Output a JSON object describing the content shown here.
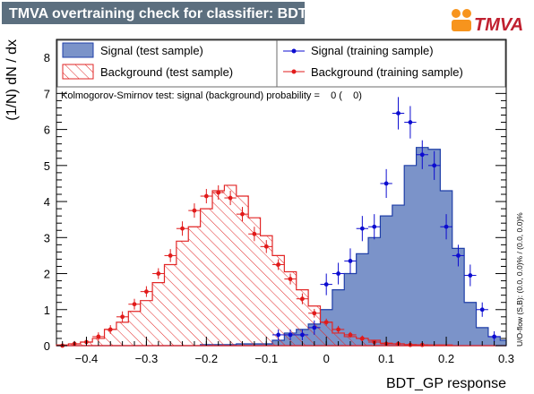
{
  "header": {
    "title": "TMVA overtraining check for classifier: BDT_GP",
    "logo_text": "TMVA"
  },
  "colors": {
    "title_bg": "#5c6f7f",
    "signal_fill": "#7b93c9",
    "signal_line": "#1f3fa8",
    "signal_points": "#0c0cd0",
    "background_hatch": "#e22626",
    "background_points": "#e11b1b",
    "legend_border": "#6b6b6b"
  },
  "chart_data": {
    "type": "bar",
    "title": "TMVA overtraining check for classifier: BDT_GP",
    "xlabel": "BDT_GP response",
    "ylabel": "(1/N) dN / dx",
    "xlim": [
      -0.45,
      0.3
    ],
    "ylim": [
      0,
      8.5
    ],
    "xticks": [
      -0.4,
      -0.3,
      -0.2,
      -0.1,
      0,
      0.1,
      0.2,
      0.3
    ],
    "xtick_labels": [
      "−0.4",
      "−0.3",
      "−0.2",
      "−0.1",
      "0",
      "0.1",
      "0.2",
      "0.3"
    ],
    "yticks": [
      0,
      1,
      2,
      3,
      4,
      5,
      6,
      7,
      8
    ],
    "ytick_labels": [
      "0",
      "1",
      "2",
      "3",
      "4",
      "5",
      "6",
      "7",
      "8"
    ],
    "bin_edges": [
      -0.45,
      -0.43,
      -0.41,
      -0.39,
      -0.37,
      -0.35,
      -0.33,
      -0.31,
      -0.29,
      -0.27,
      -0.25,
      -0.23,
      -0.21,
      -0.19,
      -0.17,
      -0.15,
      -0.13,
      -0.11,
      -0.09,
      -0.07,
      -0.05,
      -0.03,
      -0.01,
      0.01,
      0.03,
      0.05,
      0.07,
      0.09,
      0.11,
      0.13,
      0.15,
      0.17,
      0.19,
      0.21,
      0.23,
      0.25,
      0.27,
      0.29,
      0.3
    ],
    "series": [
      {
        "name": "Signal (test sample)",
        "style": "filled",
        "values": [
          0,
          0,
          0,
          0,
          0,
          0,
          0,
          0,
          0,
          0,
          0,
          0,
          0.03,
          0.03,
          0.03,
          0.05,
          0.05,
          0.05,
          0.15,
          0.35,
          0.45,
          0.6,
          1.0,
          1.55,
          2.0,
          2.55,
          3.0,
          3.6,
          3.9,
          5.0,
          5.5,
          5.45,
          4.3,
          2.7,
          1.2,
          0.5,
          0.25,
          0.15
        ]
      },
      {
        "name": "Background (test sample)",
        "style": "hatched",
        "values": [
          0.02,
          0.05,
          0.1,
          0.2,
          0.45,
          0.65,
          0.95,
          1.25,
          1.75,
          2.25,
          2.9,
          3.3,
          3.8,
          4.3,
          4.45,
          4.15,
          3.55,
          3.05,
          2.5,
          2.05,
          1.55,
          1.1,
          0.65,
          0.35,
          0.25,
          0.2,
          0.15,
          0.07,
          0.05,
          0.03,
          0.02,
          0.02,
          0.02,
          0,
          0,
          0,
          0,
          0
        ]
      },
      {
        "name": "Signal (training sample)",
        "style": "points",
        "x": [
          -0.08,
          -0.06,
          -0.04,
          -0.02,
          0.0,
          0.02,
          0.04,
          0.06,
          0.08,
          0.1,
          0.12,
          0.14,
          0.16,
          0.18,
          0.2,
          0.22,
          0.24,
          0.26,
          0.28
        ],
        "y": [
          0.3,
          0.3,
          0.3,
          0.5,
          1.7,
          2.0,
          2.35,
          3.25,
          3.3,
          4.5,
          6.45,
          6.2,
          5.3,
          5.0,
          3.3,
          2.5,
          1.95,
          1.0,
          0.25
        ],
        "err": [
          0.15,
          0.15,
          0.15,
          0.2,
          0.3,
          0.3,
          0.35,
          0.35,
          0.35,
          0.4,
          0.45,
          0.45,
          0.4,
          0.4,
          0.35,
          0.3,
          0.3,
          0.2,
          0.15
        ]
      },
      {
        "name": "Background (training sample)",
        "style": "points",
        "x": [
          -0.44,
          -0.42,
          -0.4,
          -0.38,
          -0.36,
          -0.34,
          -0.32,
          -0.3,
          -0.28,
          -0.26,
          -0.24,
          -0.22,
          -0.2,
          -0.18,
          -0.16,
          -0.14,
          -0.12,
          -0.1,
          -0.08,
          -0.06,
          -0.04,
          -0.02,
          0.0,
          0.02,
          0.04,
          0.06,
          0.08,
          0.1,
          0.12,
          0.14,
          0.16
        ],
        "y": [
          0.0,
          0.05,
          0.1,
          0.25,
          0.45,
          0.8,
          1.15,
          1.5,
          2.0,
          2.5,
          3.25,
          3.75,
          4.15,
          4.25,
          4.1,
          3.65,
          3.1,
          2.75,
          2.25,
          1.85,
          1.3,
          0.9,
          0.65,
          0.45,
          0.3,
          0.2,
          0.1,
          0.05,
          0.05,
          0.02,
          0.02
        ],
        "err": [
          0.05,
          0.08,
          0.1,
          0.12,
          0.12,
          0.15,
          0.15,
          0.15,
          0.15,
          0.18,
          0.2,
          0.2,
          0.2,
          0.2,
          0.2,
          0.2,
          0.2,
          0.18,
          0.15,
          0.15,
          0.15,
          0.12,
          0.1,
          0.1,
          0.08,
          0.08,
          0.06,
          0.05,
          0.05,
          0.04,
          0.04
        ]
      }
    ],
    "legend": {
      "placement": "top",
      "entries": [
        "Signal (test sample)",
        "Background (test sample)",
        "Signal (training sample)",
        "Background (training sample)"
      ]
    },
    "annotations": {
      "ks_text": "Kolmogorov-Smirnov test: signal (background) probability =    0 (    0)",
      "side_text": "U/O-flow (S,B): (0.0, 0.0)% / (0.0, 0.0)%"
    }
  }
}
